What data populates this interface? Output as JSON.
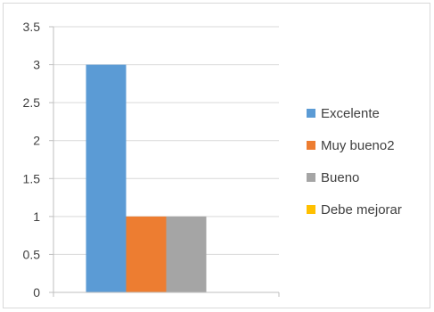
{
  "chart_data": {
    "type": "bar",
    "categories": [
      ""
    ],
    "series": [
      {
        "name": "Excelente",
        "values": [
          3
        ],
        "color": "#5b9bd5"
      },
      {
        "name": "Muy bueno2",
        "values": [
          1
        ],
        "color": "#ed7d31"
      },
      {
        "name": "Bueno",
        "values": [
          1
        ],
        "color": "#a5a5a5"
      },
      {
        "name": "Debe mejorar",
        "values": [
          0
        ],
        "color": "#ffc000"
      }
    ],
    "title": "",
    "xlabel": "",
    "ylabel": "",
    "ylim": [
      0,
      3.5
    ],
    "yticks": [
      "0",
      "0.5",
      "1",
      "1.5",
      "2",
      "2.5",
      "3",
      "3.5"
    ],
    "grid": true,
    "legend": "right"
  }
}
